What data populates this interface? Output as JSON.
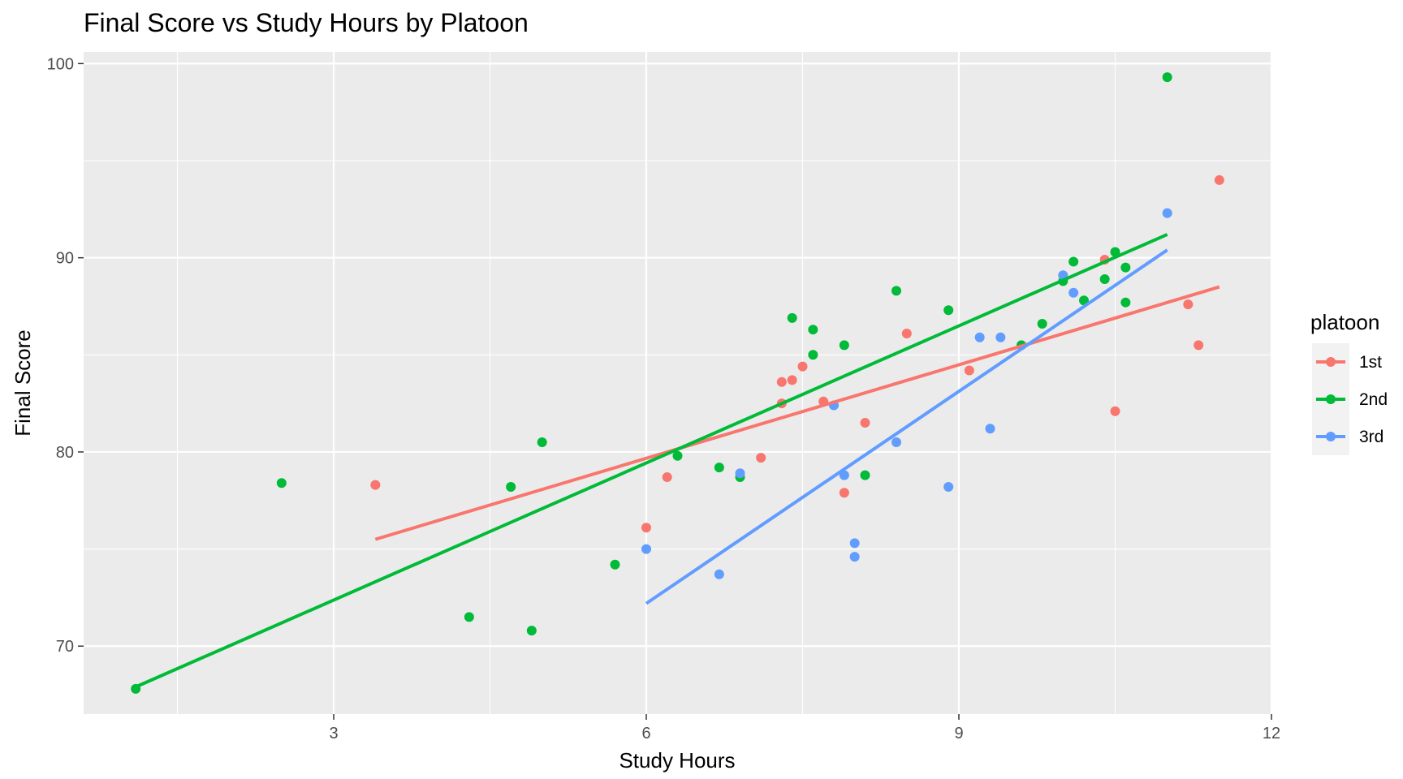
{
  "title": "Final Score vs Study Hours by Platoon",
  "chart_data": {
    "type": "scatter",
    "title": "Final Score vs Study Hours by Platoon",
    "xlabel": "Study Hours",
    "ylabel": "Final Score",
    "xlim": [
      0.6,
      12.0
    ],
    "ylim": [
      66.5,
      100.6
    ],
    "x_ticks": [
      "3",
      "6",
      "9",
      "12"
    ],
    "y_ticks": [
      "70",
      "80",
      "90",
      "100"
    ],
    "grid": true,
    "legend": {
      "title": "platoon",
      "position": "right"
    },
    "series": [
      {
        "name": "1st",
        "color": "#F8766D",
        "points": [
          [
            3.4,
            78.3
          ],
          [
            6.0,
            76.1
          ],
          [
            6.2,
            78.7
          ],
          [
            7.1,
            79.7
          ],
          [
            7.3,
            82.5
          ],
          [
            7.3,
            83.6
          ],
          [
            7.4,
            83.7
          ],
          [
            7.5,
            84.4
          ],
          [
            7.7,
            82.6
          ],
          [
            7.9,
            77.9
          ],
          [
            8.1,
            81.5
          ],
          [
            8.5,
            86.1
          ],
          [
            9.1,
            84.2
          ],
          [
            10.4,
            89.9
          ],
          [
            10.5,
            82.1
          ],
          [
            11.2,
            87.6
          ],
          [
            11.3,
            85.5
          ],
          [
            11.5,
            94.0
          ]
        ],
        "fit": [
          [
            3.4,
            75.5
          ],
          [
            11.5,
            88.5
          ]
        ]
      },
      {
        "name": "2nd",
        "color": "#00BA38",
        "points": [
          [
            1.1,
            67.8
          ],
          [
            2.5,
            78.4
          ],
          [
            4.3,
            71.5
          ],
          [
            4.7,
            78.2
          ],
          [
            4.9,
            70.8
          ],
          [
            5.0,
            80.5
          ],
          [
            5.7,
            74.2
          ],
          [
            6.3,
            79.8
          ],
          [
            6.7,
            79.2
          ],
          [
            6.9,
            78.7
          ],
          [
            7.4,
            86.9
          ],
          [
            7.6,
            86.3
          ],
          [
            7.6,
            85.0
          ],
          [
            7.9,
            85.5
          ],
          [
            8.1,
            78.8
          ],
          [
            8.4,
            88.3
          ],
          [
            8.9,
            87.3
          ],
          [
            9.6,
            85.5
          ],
          [
            9.8,
            86.6
          ],
          [
            10.0,
            88.8
          ],
          [
            10.1,
            89.8
          ],
          [
            10.2,
            87.8
          ],
          [
            10.4,
            88.9
          ],
          [
            10.5,
            90.3
          ],
          [
            10.6,
            89.5
          ],
          [
            10.6,
            87.7
          ],
          [
            11.0,
            99.3
          ]
        ],
        "fit": [
          [
            1.1,
            67.9
          ],
          [
            11.0,
            91.2
          ]
        ]
      },
      {
        "name": "3rd",
        "color": "#619CFF",
        "points": [
          [
            6.0,
            75.0
          ],
          [
            6.7,
            73.7
          ],
          [
            6.9,
            78.9
          ],
          [
            7.8,
            82.4
          ],
          [
            7.9,
            78.8
          ],
          [
            8.0,
            75.3
          ],
          [
            8.0,
            74.6
          ],
          [
            8.4,
            80.5
          ],
          [
            8.9,
            78.2
          ],
          [
            9.2,
            85.9
          ],
          [
            9.3,
            81.2
          ],
          [
            9.4,
            85.9
          ],
          [
            10.0,
            89.1
          ],
          [
            10.1,
            88.2
          ],
          [
            11.0,
            92.3
          ]
        ],
        "fit": [
          [
            6.0,
            72.2
          ],
          [
            11.0,
            90.4
          ]
        ]
      }
    ]
  }
}
